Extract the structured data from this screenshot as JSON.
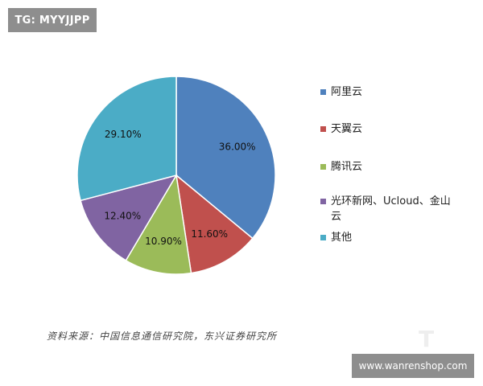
{
  "badge": {
    "text": "TG: MYYJJPP"
  },
  "watermark": {
    "text": "www.wanrenshop.com",
    "logo_text": "T"
  },
  "source": {
    "text": "资料来源：中国信息通信研究院，东兴证券研究所"
  },
  "chart_data": {
    "type": "pie",
    "title": "",
    "legend_position": "right",
    "slices": [
      {
        "name": "阿里云",
        "value": 36.0,
        "label": "36.00%",
        "color": "#4f81bd"
      },
      {
        "name": "天翼云",
        "value": 11.6,
        "label": "11.60%",
        "color": "#c0504d"
      },
      {
        "name": "腾讯云",
        "value": 10.9,
        "label": "10.90%",
        "color": "#9bbb59"
      },
      {
        "name": "光环新网、Ucloud、金山云",
        "value": 12.4,
        "label": "12.40%",
        "color": "#8064a2"
      },
      {
        "name": "其他",
        "value": 29.1,
        "label": "29.10%",
        "color": "#4bacc6"
      }
    ]
  }
}
